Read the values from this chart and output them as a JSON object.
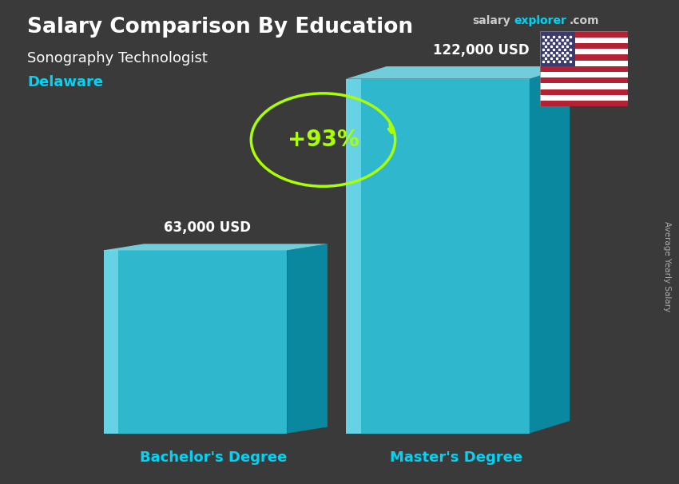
{
  "title_main": "Salary Comparison By Education",
  "title_sub": "Sonography Technologist",
  "title_location": "Delaware",
  "categories": [
    "Bachelor's Degree",
    "Master's Degree"
  ],
  "values": [
    63000,
    122000
  ],
  "value_labels": [
    "63,000 USD",
    "122,000 USD"
  ],
  "pct_change": "+93%",
  "face_color": "#2dd4f0",
  "top_color": "#7eeeff",
  "side_color": "#009ab8",
  "highlight_col": "#aaf5ff",
  "bg_color": "#3a3a3a",
  "title_color": "#ffffff",
  "subtitle_color": "#ffffff",
  "location_color": "#00d4f5",
  "value_label_color": "#ffffff",
  "category_label_color": "#00d4f5",
  "pct_color": "#aaff00",
  "arrow_color": "#aaff00",
  "site_salary_color": "#cccccc",
  "site_explorer_color": "#00d4f5",
  "ylabel_rotated": "Average Yearly Salary",
  "ylim": [
    0,
    145000
  ],
  "bar_width": 0.28,
  "bar_positions": [
    0.28,
    0.65
  ]
}
